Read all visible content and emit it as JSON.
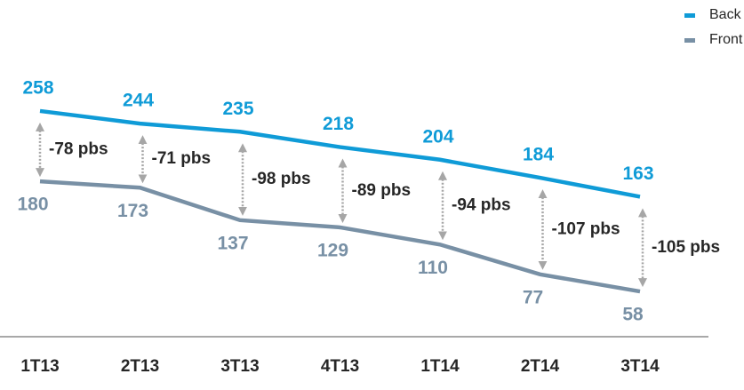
{
  "chart_data": {
    "type": "line",
    "categories": [
      "1T13",
      "2T13",
      "3T13",
      "4T13",
      "1T14",
      "2T14",
      "3T14"
    ],
    "series": [
      {
        "name": "Back",
        "color": "#0f9bd7",
        "values": [
          258,
          244,
          235,
          218,
          204,
          184,
          163
        ]
      },
      {
        "name": "Front",
        "color": "#7890a5",
        "values": [
          180,
          173,
          137,
          129,
          110,
          77,
          58
        ]
      }
    ],
    "annotations": [
      "-78 pbs",
      "-71 pbs",
      "-98 pbs",
      "-89 pbs",
      "-94 pbs",
      "-107 pbs",
      "-105 pbs"
    ],
    "ylim": [
      0,
      380
    ],
    "legend": "top-right"
  }
}
